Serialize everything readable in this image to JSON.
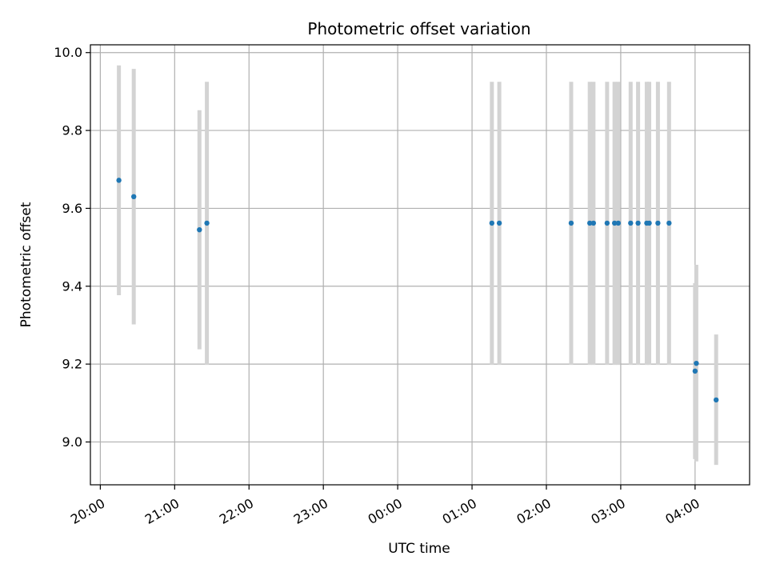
{
  "chart_data": {
    "type": "scatter",
    "title": "Photometric offset variation",
    "xlabel": "UTC time",
    "ylabel": "Photometric offset",
    "x_axis": {
      "type": "time",
      "range": [
        "19:52",
        "04:44"
      ],
      "ticks": [
        "20:00",
        "21:00",
        "22:00",
        "23:00",
        "00:00",
        "01:00",
        "02:00",
        "03:00",
        "04:00"
      ]
    },
    "ylim": [
      8.89,
      10.02
    ],
    "y_ticks": [
      9.0,
      9.2,
      9.4,
      9.6,
      9.8,
      10.0
    ],
    "grid": true,
    "legend": "none",
    "colors": {
      "point": "#1f77b4",
      "errorbar": "#d3d3d3",
      "grid": "#b0b0b0"
    },
    "points": [
      {
        "x": "20:15",
        "y": 9.672,
        "err_low": 9.377,
        "err_high": 9.967
      },
      {
        "x": "20:27",
        "y": 9.63,
        "err_low": 9.302,
        "err_high": 9.958
      },
      {
        "x": "21:20",
        "y": 9.545,
        "err_low": 9.238,
        "err_high": 9.852
      },
      {
        "x": "21:26",
        "y": 9.562,
        "err_low": 9.198,
        "err_high": 9.925
      },
      {
        "x": "01:16",
        "y": 9.562,
        "err_low": 9.198,
        "err_high": 9.925
      },
      {
        "x": "01:22",
        "y": 9.562,
        "err_low": 9.198,
        "err_high": 9.925
      },
      {
        "x": "02:20",
        "y": 9.562,
        "err_low": 9.198,
        "err_high": 9.925
      },
      {
        "x": "02:35",
        "y": 9.562,
        "err_low": 9.198,
        "err_high": 9.925
      },
      {
        "x": "02:38",
        "y": 9.562,
        "err_low": 9.198,
        "err_high": 9.925
      },
      {
        "x": "02:49",
        "y": 9.562,
        "err_low": 9.198,
        "err_high": 9.925
      },
      {
        "x": "02:55",
        "y": 9.562,
        "err_low": 9.198,
        "err_high": 9.925
      },
      {
        "x": "02:58",
        "y": 9.562,
        "err_low": 9.198,
        "err_high": 9.925
      },
      {
        "x": "03:08",
        "y": 9.562,
        "err_low": 9.198,
        "err_high": 9.925
      },
      {
        "x": "03:14",
        "y": 9.562,
        "err_low": 9.198,
        "err_high": 9.925
      },
      {
        "x": "03:21",
        "y": 9.562,
        "err_low": 9.198,
        "err_high": 9.925
      },
      {
        "x": "03:23",
        "y": 9.562,
        "err_low": 9.198,
        "err_high": 9.925
      },
      {
        "x": "03:30",
        "y": 9.562,
        "err_low": 9.198,
        "err_high": 9.925
      },
      {
        "x": "03:39",
        "y": 9.562,
        "err_low": 9.198,
        "err_high": 9.925
      },
      {
        "x": "04:00",
        "y": 9.182,
        "err_low": 8.956,
        "err_high": 9.408
      },
      {
        "x": "04:01",
        "y": 9.202,
        "err_low": 8.95,
        "err_high": 9.455
      },
      {
        "x": "04:17",
        "y": 9.108,
        "err_low": 8.941,
        "err_high": 9.276
      }
    ]
  }
}
